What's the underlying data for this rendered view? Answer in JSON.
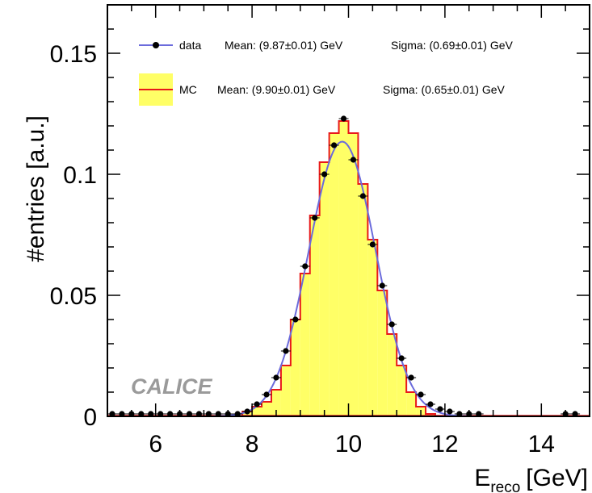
{
  "chart_data": {
    "type": "histogram",
    "xlabel_main": "E",
    "xlabel_sub": "reco",
    "xlabel_unit": "[GeV]",
    "ylabel": "#entries [a.u.]",
    "xlim": [
      5,
      15
    ],
    "ylim": [
      0,
      0.17
    ],
    "x_ticks": [
      "6",
      "8",
      "10",
      "12",
      "14"
    ],
    "y_ticks": [
      {
        "value": 0,
        "label": "0"
      },
      {
        "value": 0.05,
        "label": "0.05"
      },
      {
        "value": 0.1,
        "label": "0.1"
      },
      {
        "value": 0.15,
        "label": "0.15"
      }
    ],
    "watermark": "CALICE",
    "legend": [
      {
        "name": "data",
        "mean": "Mean: (9.87±0.01) GeV",
        "sigma": "Sigma: (0.69±0.01) GeV"
      },
      {
        "name": "MC",
        "mean": "Mean: (9.90±0.01) GeV",
        "sigma": "Sigma: (0.65±0.01) GeV"
      }
    ],
    "colors": {
      "data": "#000000",
      "data_fit": "#6b6bdc",
      "mc_fill": "#ffff66",
      "mc_line": "#e8181a"
    },
    "mc": {
      "edges": [
        7.8,
        8.0,
        8.2,
        8.4,
        8.6,
        8.8,
        9.0,
        9.2,
        9.4,
        9.6,
        9.8,
        10.0,
        10.2,
        10.4,
        10.6,
        10.8,
        11.0,
        11.2,
        11.4,
        11.6,
        11.8
      ],
      "values": [
        0.002,
        0.004,
        0.006,
        0.011,
        0.021,
        0.04,
        0.059,
        0.083,
        0.105,
        0.117,
        0.122,
        0.117,
        0.096,
        0.073,
        0.052,
        0.034,
        0.021,
        0.01,
        0.004,
        0.001
      ]
    },
    "data": {
      "x": [
        5.1,
        5.3,
        5.5,
        5.7,
        5.9,
        6.1,
        6.3,
        6.5,
        6.7,
        6.9,
        7.1,
        7.3,
        7.5,
        7.7,
        7.9,
        8.1,
        8.3,
        8.5,
        8.7,
        8.9,
        9.1,
        9.3,
        9.5,
        9.7,
        9.9,
        10.1,
        10.3,
        10.5,
        10.7,
        10.9,
        11.1,
        11.3,
        11.5,
        11.7,
        11.9,
        12.1,
        12.3,
        12.5,
        12.7,
        14.5,
        14.7
      ],
      "y": [
        0.001,
        0.001,
        0.001,
        0.001,
        0.001,
        0.001,
        0.001,
        0.001,
        0.001,
        0.001,
        0.001,
        0.001,
        0.001,
        0.001,
        0.002,
        0.005,
        0.009,
        0.016,
        0.027,
        0.04,
        0.062,
        0.082,
        0.1,
        0.112,
        0.123,
        0.106,
        0.091,
        0.071,
        0.054,
        0.038,
        0.024,
        0.016,
        0.009,
        0.005,
        0.003,
        0.002,
        0.001,
        0.001,
        0.001,
        0.001,
        0.001
      ]
    },
    "fit": {
      "mean": 9.87,
      "sigma": 0.69,
      "amplitude": 0.1135
    }
  }
}
